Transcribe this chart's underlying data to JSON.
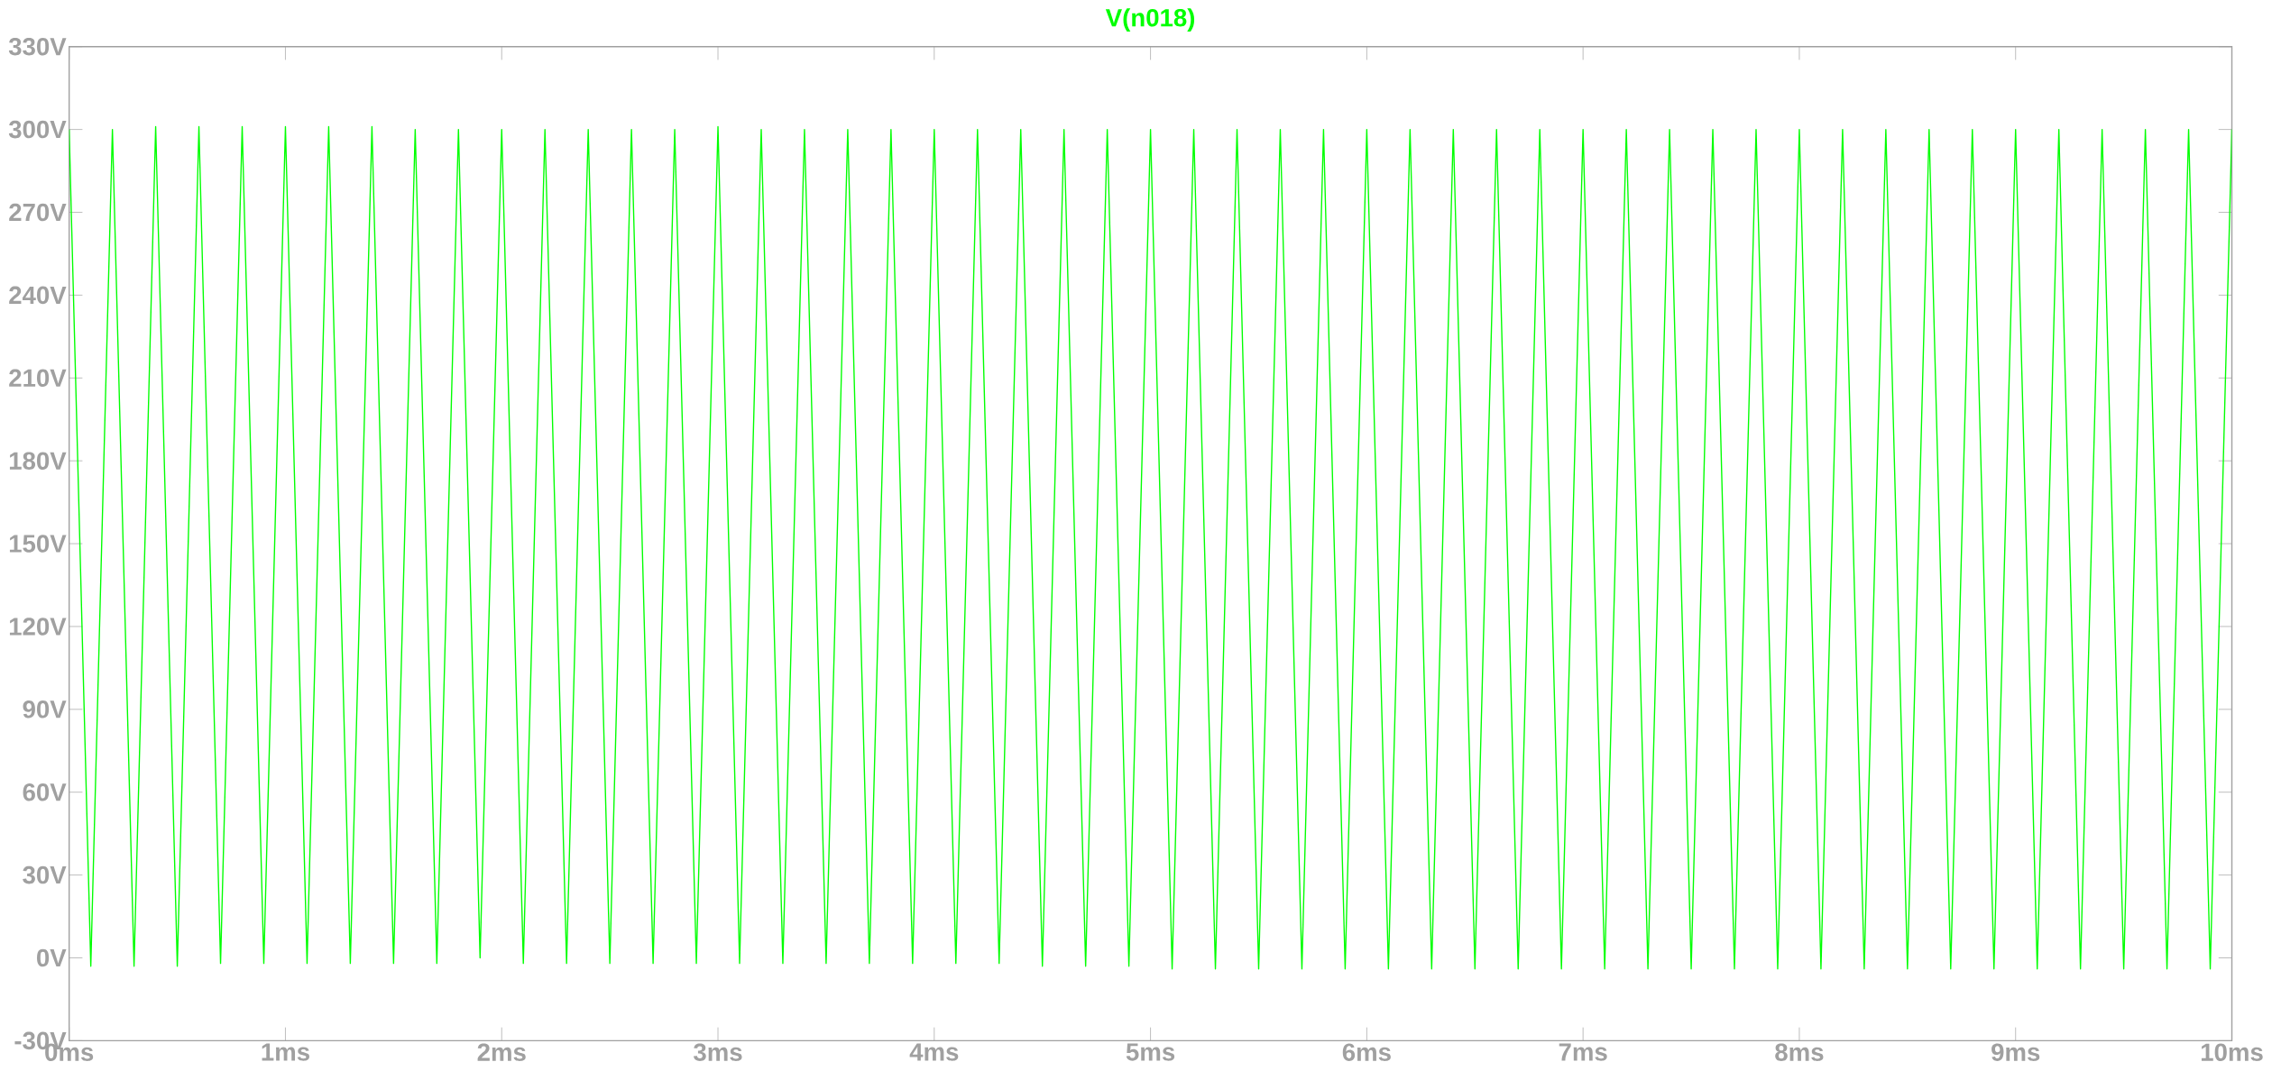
{
  "chart_data": {
    "type": "line",
    "title": "V(n018)",
    "x": [
      0,
      0.1,
      0.2,
      0.3,
      0.4,
      0.5,
      0.6,
      0.7,
      0.8,
      0.9,
      1.0,
      1.1,
      1.2,
      1.3,
      1.4,
      1.5,
      1.6,
      1.7,
      1.8,
      1.9,
      2.0,
      2.1,
      2.2,
      2.3,
      2.4,
      2.5,
      2.6,
      2.7,
      2.8,
      2.9,
      3.0,
      3.1,
      3.2,
      3.3,
      3.4,
      3.5,
      3.6,
      3.7,
      3.8,
      3.9,
      4.0,
      4.1,
      4.2,
      4.3,
      4.4,
      4.5,
      4.6,
      4.7,
      4.8,
      4.9,
      5.0,
      5.1,
      5.2,
      5.3,
      5.4,
      5.5,
      5.6,
      5.7,
      5.8,
      5.9,
      6.0,
      6.1,
      6.2,
      6.3,
      6.4,
      6.5,
      6.6,
      6.7,
      6.8,
      6.9,
      7.0,
      7.1,
      7.2,
      7.3,
      7.4,
      7.5,
      7.6,
      7.7,
      7.8,
      7.9,
      8.0,
      8.1,
      8.2,
      8.3,
      8.4,
      8.5,
      8.6,
      8.7,
      8.8,
      8.9,
      9.0,
      9.1,
      9.2,
      9.3,
      9.4,
      9.5,
      9.6,
      9.7,
      9.8,
      9.9,
      10.0
    ],
    "series": [
      {
        "color": "#00ff00",
        "values": [
          300,
          -3,
          300,
          -3,
          301,
          -3,
          301,
          -2,
          301,
          -2,
          301,
          -2,
          301,
          -2,
          301,
          -2,
          300,
          -2,
          300,
          0,
          300,
          -2,
          300,
          -2,
          300,
          -2,
          300,
          -2,
          300,
          -2,
          301,
          -2,
          300,
          -2,
          300,
          -2,
          300,
          -2,
          300,
          -2,
          300,
          -2,
          300,
          -2,
          300,
          -3,
          300,
          -3,
          300,
          -3,
          300,
          -4,
          300,
          -4,
          300,
          -4,
          300,
          -4,
          300,
          -4,
          300,
          -4,
          300,
          -4,
          300,
          -4,
          300,
          -4,
          300,
          -4,
          300,
          -4,
          300,
          -4,
          300,
          -4,
          300,
          -4,
          300,
          -4,
          300,
          -4,
          300,
          -4,
          300,
          -4,
          300,
          -4,
          300,
          -4,
          300,
          -4,
          300,
          -4,
          300,
          -4,
          300,
          -4,
          300,
          -4,
          300
        ]
      }
    ],
    "ylim": [
      -30,
      330
    ],
    "yticks": [
      {
        "value": -30,
        "label": "-30V"
      },
      {
        "value": 0,
        "label": "0V"
      },
      {
        "value": 30,
        "label": "30V"
      },
      {
        "value": 60,
        "label": "60V"
      },
      {
        "value": 90,
        "label": "90V"
      },
      {
        "value": 120,
        "label": "120V"
      },
      {
        "value": 150,
        "label": "150V"
      },
      {
        "value": 180,
        "label": "180V"
      },
      {
        "value": 210,
        "label": "210V"
      },
      {
        "value": 240,
        "label": "240V"
      },
      {
        "value": 270,
        "label": "270V"
      },
      {
        "value": 300,
        "label": "300V"
      },
      {
        "value": 330,
        "label": "330V"
      }
    ],
    "xlim": [
      0,
      10
    ],
    "xticks": [
      {
        "value": 0,
        "label": "0ms"
      },
      {
        "value": 1,
        "label": "1ms"
      },
      {
        "value": 2,
        "label": "2ms"
      },
      {
        "value": 3,
        "label": "3ms"
      },
      {
        "value": 4,
        "label": "4ms"
      },
      {
        "value": 5,
        "label": "5ms"
      },
      {
        "value": 6,
        "label": "6ms"
      },
      {
        "value": 7,
        "label": "7ms"
      },
      {
        "value": 8,
        "label": "8ms"
      },
      {
        "value": 9,
        "label": "9ms"
      },
      {
        "value": 10,
        "label": "10ms"
      }
    ],
    "marker": "none"
  }
}
